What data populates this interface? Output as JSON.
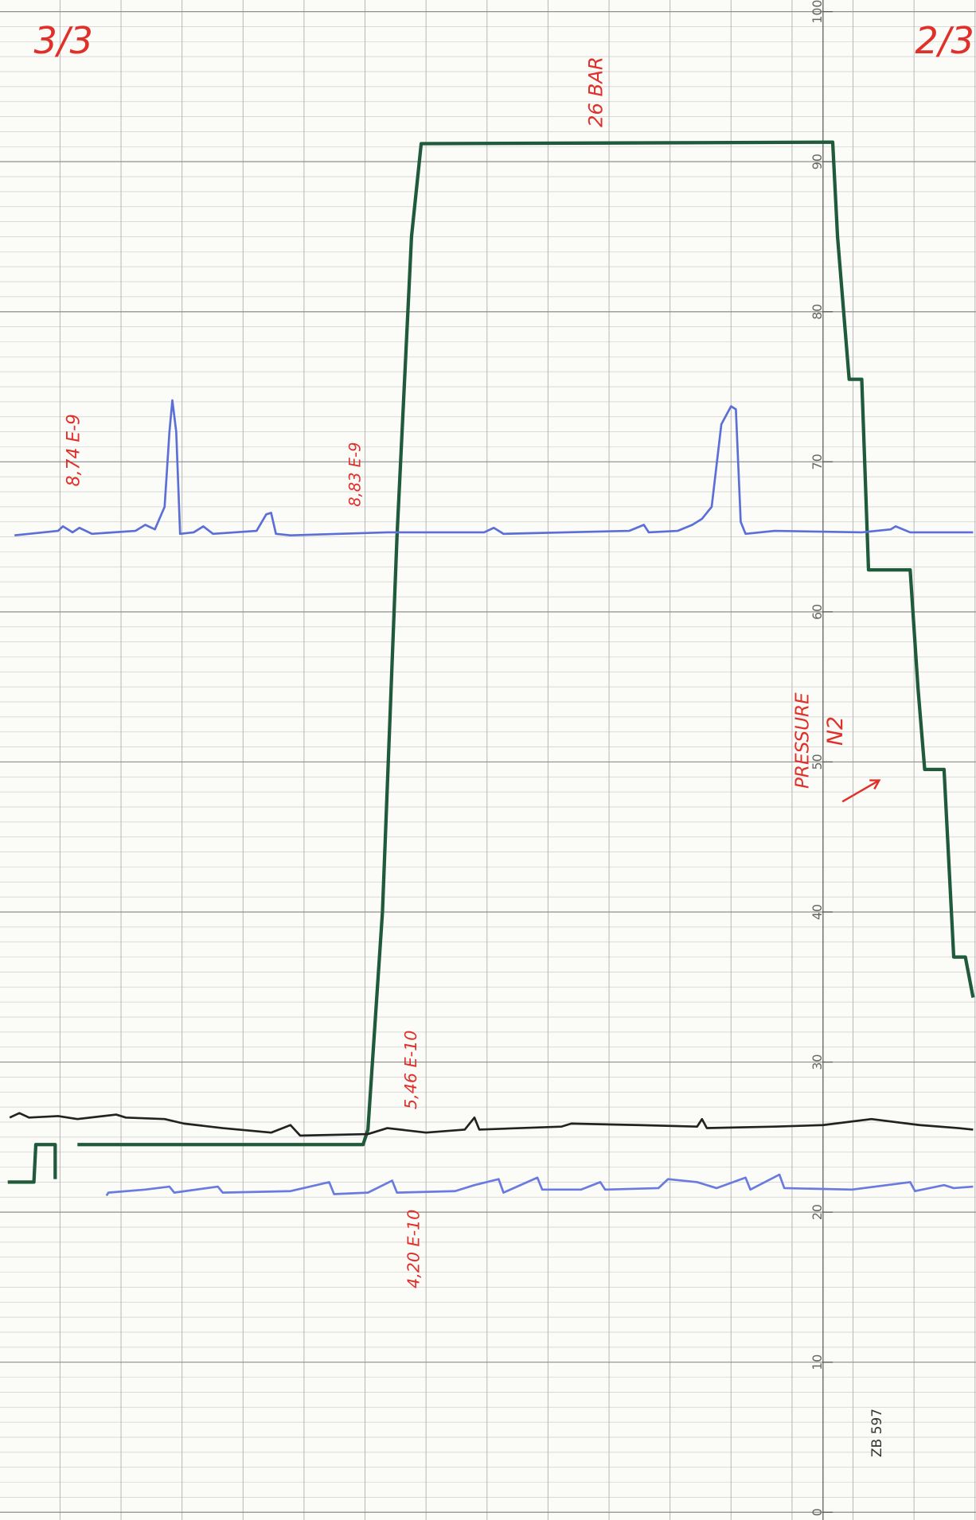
{
  "chart_data": {
    "type": "line",
    "xlim": [
      0,
      1008
    ],
    "ylim": [
      0,
      100
    ],
    "yticks": [
      0,
      10,
      20,
      30,
      40,
      50,
      60,
      70,
      80,
      90,
      100
    ],
    "grid": true,
    "annotations": [
      "3/3",
      "2/3",
      "26 BAR",
      "8,74 E-9",
      "8,83 E-9",
      "5,46 E-10",
      "4,20 E-10",
      "PRESSURE",
      "N2",
      "ZB 597"
    ],
    "series": [
      {
        "color": "#1f5a3a",
        "x": [
          8,
          35,
          37,
          57,
          57,
          70,
          80,
          375,
          380,
          395,
          410,
          425,
          435,
          860,
          865,
          877,
          890,
          897,
          940,
          948,
          955,
          975,
          985,
          997,
          1005
        ],
        "values": [
          22,
          22,
          24.5,
          24.5,
          22.2,
          null,
          24.5,
          24.5,
          25.5,
          40,
          65,
          85,
          91.2,
          91.3,
          85,
          75.5,
          75.5,
          62.8,
          62.8,
          55,
          49.5,
          49.5,
          37,
          37,
          34.3
        ]
      },
      {
        "color": "#5b6fd6",
        "x": [
          15,
          60,
          65,
          75,
          82,
          95,
          140,
          150,
          160,
          170,
          175,
          178,
          182,
          186,
          200,
          210,
          220,
          265,
          275,
          280,
          285,
          300,
          400,
          500,
          510,
          520,
          650,
          665,
          670,
          700,
          715,
          725,
          735,
          745,
          755,
          760,
          765,
          770,
          800,
          890,
          920,
          925,
          940,
          1005
        ],
        "values": [
          65.1,
          65.4,
          65.7,
          65.3,
          65.6,
          65.2,
          65.4,
          65.8,
          65.5,
          67,
          72,
          74.1,
          72,
          65.2,
          65.3,
          65.7,
          65.2,
          65.4,
          66.5,
          66.6,
          65.2,
          65.1,
          65.3,
          65.3,
          65.6,
          65.2,
          65.4,
          65.8,
          65.3,
          65.4,
          65.8,
          66.2,
          67,
          72.5,
          73.7,
          73.5,
          66,
          65.2,
          65.4,
          65.3,
          65.5,
          65.7,
          65.3,
          65.3
        ]
      },
      {
        "color": "#222222",
        "x": [
          10,
          20,
          30,
          60,
          80,
          120,
          130,
          170,
          190,
          230,
          280,
          300,
          310,
          380,
          400,
          440,
          480,
          490,
          495,
          580,
          590,
          660,
          720,
          725,
          730,
          800,
          850,
          900,
          950,
          990,
          1005
        ],
        "values": [
          26.3,
          26.6,
          26.3,
          26.4,
          26.2,
          26.5,
          26.3,
          26.2,
          25.9,
          25.6,
          25.3,
          25.8,
          25.1,
          25.2,
          25.6,
          25.3,
          25.5,
          26.3,
          25.5,
          25.7,
          25.9,
          25.8,
          25.7,
          26.2,
          25.6,
          25.7,
          25.8,
          26.2,
          25.8,
          25.6,
          25.5
        ]
      },
      {
        "color": "#6a7be0",
        "x": [
          110,
          112,
          150,
          175,
          180,
          225,
          230,
          300,
          340,
          345,
          380,
          405,
          410,
          470,
          490,
          515,
          520,
          555,
          560,
          600,
          620,
          625,
          680,
          690,
          720,
          740,
          770,
          775,
          805,
          810,
          880,
          940,
          945,
          975,
          985,
          1005
        ],
        "values": [
          21.1,
          21.3,
          21.5,
          21.7,
          21.3,
          21.7,
          21.3,
          21.4,
          22,
          21.2,
          21.3,
          22.1,
          21.3,
          21.4,
          21.8,
          22.2,
          21.3,
          22.3,
          21.5,
          21.5,
          22,
          21.5,
          21.6,
          22.2,
          22,
          21.6,
          22.3,
          21.5,
          22.5,
          21.6,
          21.5,
          22,
          21.4,
          21.8,
          21.6,
          21.7
        ]
      }
    ]
  }
}
